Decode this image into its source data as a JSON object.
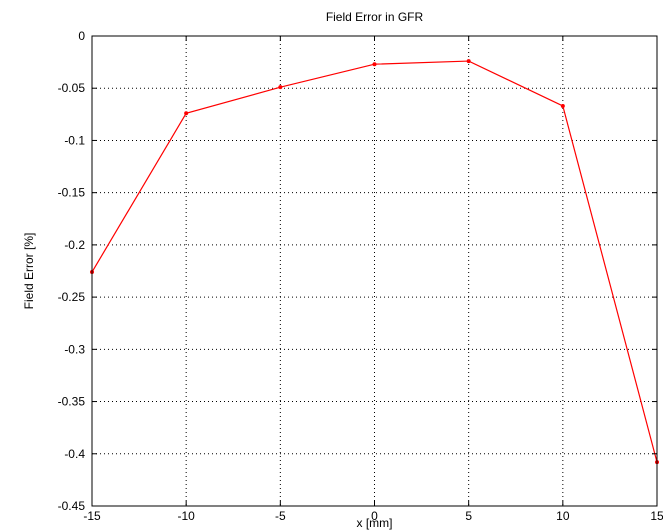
{
  "chart_data": {
    "type": "line",
    "title": "Field Error in GFR",
    "xlabel": "x [mm]",
    "ylabel": "Field Error [%]",
    "xlim": [
      -15,
      15
    ],
    "ylim": [
      -0.45,
      0
    ],
    "x_ticks": [
      -15,
      -10,
      -5,
      0,
      5,
      10,
      15
    ],
    "y_ticks": [
      0,
      -0.05,
      -0.1,
      -0.15,
      -0.2,
      -0.25,
      -0.3,
      -0.35,
      -0.4,
      -0.45
    ],
    "x_tick_labels": [
      "-15",
      "-10",
      "-5",
      "0",
      "5",
      "10",
      "15"
    ],
    "y_tick_labels": [
      "0",
      "-0.05",
      "-0.1",
      "-0.15",
      "-0.2",
      "-0.25",
      "-0.3",
      "-0.35",
      "-0.4",
      "-0.45"
    ],
    "grid": true,
    "series": [
      {
        "color": "#ff0000",
        "marker": "point",
        "x": [
          -15,
          -10,
          -5,
          0,
          5,
          10,
          15
        ],
        "y": [
          -0.226,
          -0.074,
          -0.049,
          -0.027,
          -0.024,
          -0.067,
          -0.408
        ]
      }
    ]
  }
}
